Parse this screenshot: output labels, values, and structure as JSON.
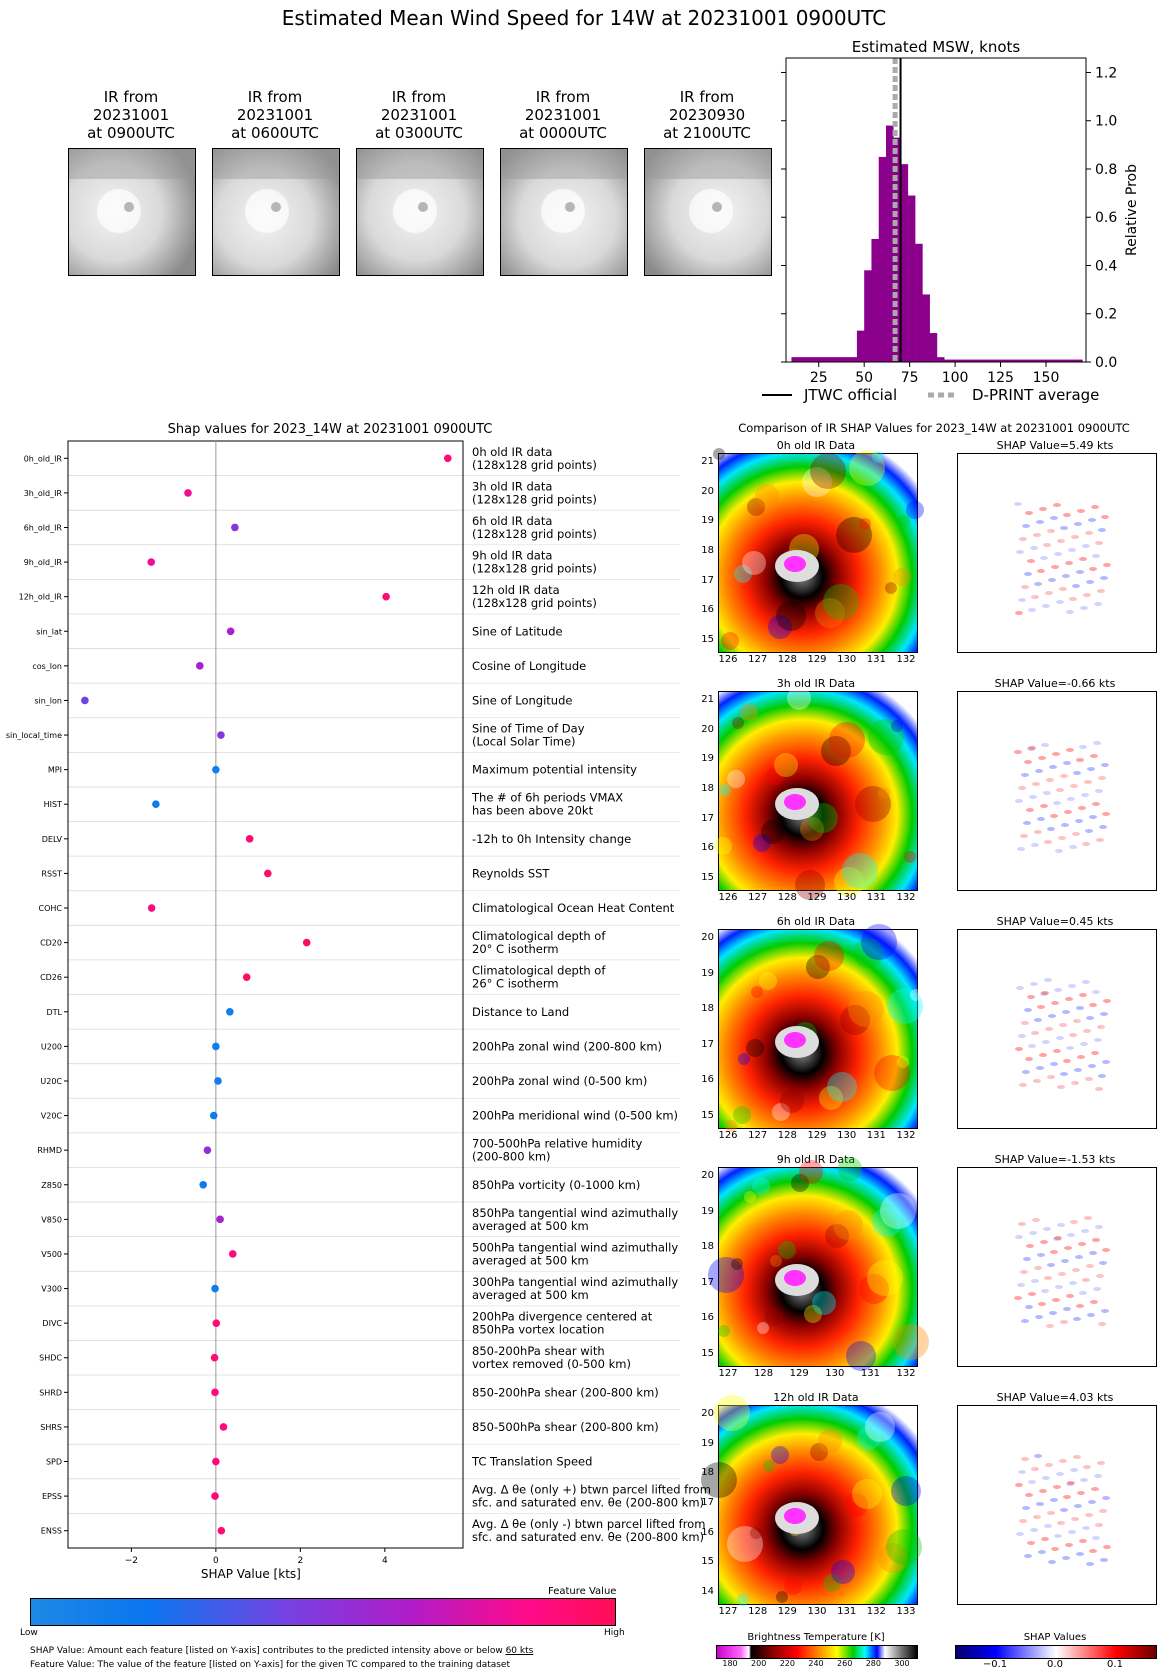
{
  "title": "Estimated Mean Wind Speed for 14W at 20231001 0900UTC",
  "ir_thumbs": [
    {
      "l1": "IR from",
      "l2": "20231001",
      "l3": "at 0900UTC"
    },
    {
      "l1": "IR from",
      "l2": "20231001",
      "l3": "at 0600UTC"
    },
    {
      "l1": "IR from",
      "l2": "20231001",
      "l3": "at 0300UTC"
    },
    {
      "l1": "IR from",
      "l2": "20231001",
      "l3": "at 0000UTC"
    },
    {
      "l1": "IR from",
      "l2": "20230930",
      "l3": "at 2100UTC"
    }
  ],
  "msw": {
    "title": "Estimated MSW, knots",
    "ylabel": "Relative Prob",
    "legend_jtwc": "JTWC official",
    "legend_dprint": "D-PRINT average",
    "xticks": [
      "25",
      "50",
      "75",
      "100",
      "125",
      "150"
    ],
    "yticks": [
      "0.0",
      "0.2",
      "0.4",
      "0.6",
      "0.8",
      "1.0",
      "1.2"
    ]
  },
  "shap": {
    "title": "Shap values for 2023_14W at 20231001 0900UTC",
    "xlabel": "SHAP Value [kts]",
    "xticks": [
      "−2",
      "0",
      "2",
      "4"
    ],
    "feature_label": "Feature Value",
    "low": "Low",
    "high": "High",
    "footer1a": "SHAP Value: Amount each feature [listed on Y-axis] contributes to the predicted intensity above or below ",
    "footer1b": "60 kts",
    "footer2": "Feature Value: The value of the feature [listed on Y-axis] for the given TC compared to the training dataset",
    "colors": {
      "low": "#1e88e5",
      "high": "#ff0d57"
    }
  },
  "chart_data": [
    {
      "type": "bar",
      "title": "Estimated MSW, knots",
      "ylabel": "Relative Prob",
      "xlim": [
        7,
        172
      ],
      "ylim": [
        0,
        1.26
      ],
      "bins": [
        [
          12,
          0.02
        ],
        [
          16,
          0.02
        ],
        [
          20,
          0.02
        ],
        [
          24,
          0.02
        ],
        [
          28,
          0.02
        ],
        [
          32,
          0.02
        ],
        [
          36,
          0.02
        ],
        [
          40,
          0.02
        ],
        [
          44,
          0.02
        ],
        [
          48,
          0.13
        ],
        [
          52,
          0.38
        ],
        [
          56,
          0.51
        ],
        [
          60,
          0.85
        ],
        [
          64,
          0.98
        ],
        [
          68,
          0.93
        ],
        [
          72,
          0.82
        ],
        [
          76,
          0.69
        ],
        [
          80,
          0.49
        ],
        [
          84,
          0.28
        ],
        [
          88,
          0.12
        ],
        [
          92,
          0.02
        ],
        [
          96,
          0.01
        ],
        [
          100,
          0.01
        ],
        [
          104,
          0.01
        ],
        [
          108,
          0.01
        ],
        [
          112,
          0.01
        ],
        [
          116,
          0.01
        ],
        [
          120,
          0.01
        ],
        [
          124,
          0.01
        ],
        [
          128,
          0.01
        ],
        [
          132,
          0.01
        ],
        [
          136,
          0.01
        ],
        [
          140,
          0.01
        ],
        [
          144,
          0.01
        ],
        [
          148,
          0.01
        ],
        [
          152,
          0.01
        ],
        [
          156,
          0.01
        ],
        [
          160,
          0.01
        ],
        [
          164,
          0.01
        ],
        [
          168,
          0.01
        ]
      ],
      "jtwc_official": 70,
      "dprint_average": 67
    },
    {
      "type": "scatter",
      "title": "Shap values for 2023_14W at 20231001 0900UTC",
      "xlabel": "SHAP Value [kts]",
      "xlim": [
        -3.5,
        5.85
      ],
      "features": [
        {
          "code": "0h_old_IR",
          "desc": [
            "0h old IR data",
            "(128x128 grid points)"
          ],
          "shap": 5.49,
          "fv": 0.9
        },
        {
          "code": "3h_old_IR",
          "desc": [
            "3h old IR data",
            "(128x128 grid points)"
          ],
          "shap": -0.66,
          "fv": 0.82
        },
        {
          "code": "6h_old_IR",
          "desc": [
            "6h old IR data",
            "(128x128 grid points)"
          ],
          "shap": 0.45,
          "fv": 0.5
        },
        {
          "code": "9h_old_IR",
          "desc": [
            "9h old IR data",
            "(128x128 grid points)"
          ],
          "shap": -1.53,
          "fv": 0.82
        },
        {
          "code": "12h_old_IR",
          "desc": [
            "12h old IR data",
            "(128x128 grid points)"
          ],
          "shap": 4.03,
          "fv": 0.92
        },
        {
          "code": "sin_lat",
          "desc": [
            "Sine of Latitude"
          ],
          "shap": 0.35,
          "fv": 0.62
        },
        {
          "code": "cos_lon",
          "desc": [
            "Cosine of Longitude"
          ],
          "shap": -0.38,
          "fv": 0.62
        },
        {
          "code": "sin_lon",
          "desc": [
            "Sine of Longitude"
          ],
          "shap": -3.1,
          "fv": 0.42
        },
        {
          "code": "sin_local_time",
          "desc": [
            "Sine of Time of Day",
            "(Local Solar Time)"
          ],
          "shap": 0.12,
          "fv": 0.48
        },
        {
          "code": "MPI",
          "desc": [
            "Maximum potential intensity"
          ],
          "shap": 0.0,
          "fv": 0.1
        },
        {
          "code": "HIST",
          "desc": [
            "The # of 6h periods VMAX",
            "has been above 20kt"
          ],
          "shap": -1.42,
          "fv": 0.15
        },
        {
          "code": "DELV",
          "desc": [
            "-12h to 0h Intensity change"
          ],
          "shap": 0.8,
          "fv": 0.92
        },
        {
          "code": "RSST",
          "desc": [
            "Reynolds SST"
          ],
          "shap": 1.23,
          "fv": 0.95
        },
        {
          "code": "COHC",
          "desc": [
            "Climatological Ocean Heat Content"
          ],
          "shap": -1.52,
          "fv": 0.88
        },
        {
          "code": "CD20",
          "desc": [
            "Climatological depth of",
            "20° C isotherm"
          ],
          "shap": 2.15,
          "fv": 0.95
        },
        {
          "code": "CD26",
          "desc": [
            "Climatological depth of",
            "26° C isotherm"
          ],
          "shap": 0.73,
          "fv": 0.95
        },
        {
          "code": "DTL",
          "desc": [
            "Distance to Land"
          ],
          "shap": 0.33,
          "fv": 0.12
        },
        {
          "code": "U200",
          "desc": [
            "200hPa zonal wind (200-800 km)"
          ],
          "shap": 0.0,
          "fv": 0.12
        },
        {
          "code": "U20C",
          "desc": [
            "200hPa zonal wind (0-500 km)"
          ],
          "shap": 0.05,
          "fv": 0.12
        },
        {
          "code": "V20C",
          "desc": [
            "200hPa meridional wind (0-500 km)"
          ],
          "shap": -0.05,
          "fv": 0.15
        },
        {
          "code": "RHMD",
          "desc": [
            "700-500hPa relative humidity",
            "(200-800 km)"
          ],
          "shap": -0.2,
          "fv": 0.55
        },
        {
          "code": "Z850",
          "desc": [
            "850hPa vorticity (0-1000 km)"
          ],
          "shap": -0.3,
          "fv": 0.15
        },
        {
          "code": "V850",
          "desc": [
            "850hPa tangential wind azimuthally",
            "averaged at 500 km"
          ],
          "shap": 0.1,
          "fv": 0.6
        },
        {
          "code": "V500",
          "desc": [
            "500hPa tangential wind azimuthally",
            "averaged at 500 km"
          ],
          "shap": 0.4,
          "fv": 0.88
        },
        {
          "code": "V300",
          "desc": [
            "300hPa tangential wind azimuthally",
            "averaged at 500 km"
          ],
          "shap": -0.02,
          "fv": 0.15
        },
        {
          "code": "DIVC",
          "desc": [
            "200hPa divergence centered at",
            "850hPa vortex location"
          ],
          "shap": 0.01,
          "fv": 0.9
        },
        {
          "code": "SHDC",
          "desc": [
            "850-200hPa shear with",
            "vortex removed (0-500 km)"
          ],
          "shap": -0.03,
          "fv": 0.9
        },
        {
          "code": "SHRD",
          "desc": [
            "850-200hPa shear (200-800 km)"
          ],
          "shap": -0.02,
          "fv": 0.9
        },
        {
          "code": "SHRS",
          "desc": [
            "850-500hPa shear (200-800 km)"
          ],
          "shap": 0.18,
          "fv": 0.9
        },
        {
          "code": "SPD",
          "desc": [
            "TC Translation Speed"
          ],
          "shap": 0.0,
          "fv": 0.9
        },
        {
          "code": "EPSS",
          "desc": [
            "Avg. Δ θe (only +) btwn parcel lifted from",
            "sfc. and saturated env. θe (200-800 km)"
          ],
          "shap": -0.02,
          "fv": 0.9
        },
        {
          "code": "ENSS",
          "desc": [
            "Avg. Δ θe (only -) btwn parcel lifted from",
            "sfc. and saturated env. θe (200-800 km)"
          ],
          "shap": 0.13,
          "fv": 0.92
        }
      ]
    }
  ],
  "comparison": {
    "title": "Comparison of IR SHAP Values for 2023_14W at 20231001 0900UTC",
    "panels": [
      {
        "ir": "0h old IR Data",
        "shap": "SHAP Value=5.49 kts",
        "yt": [
          "15",
          "16",
          "17",
          "18",
          "19",
          "20",
          "21"
        ],
        "xt": [
          "126",
          "127",
          "128",
          "129",
          "130",
          "131",
          "132"
        ]
      },
      {
        "ir": "3h old IR Data",
        "shap": "SHAP Value=-0.66 kts",
        "yt": [
          "15",
          "16",
          "17",
          "18",
          "19",
          "20",
          "21"
        ],
        "xt": [
          "126",
          "127",
          "128",
          "129",
          "130",
          "131",
          "132"
        ]
      },
      {
        "ir": "6h old IR Data",
        "shap": "SHAP Value=0.45 kts",
        "yt": [
          "15",
          "16",
          "17",
          "18",
          "19",
          "20"
        ],
        "xt": [
          "126",
          "127",
          "128",
          "129",
          "130",
          "131",
          "132"
        ]
      },
      {
        "ir": "9h old IR Data",
        "shap": "SHAP Value=-1.53 kts",
        "yt": [
          "15",
          "16",
          "17",
          "18",
          "19",
          "20"
        ],
        "xt": [
          "127",
          "128",
          "129",
          "130",
          "131",
          "132"
        ]
      },
      {
        "ir": "12h old IR Data",
        "shap": "SHAP Value=4.03 kts",
        "yt": [
          "14",
          "15",
          "16",
          "17",
          "18",
          "19",
          "20"
        ],
        "xt": [
          "127",
          "128",
          "129",
          "130",
          "131",
          "132",
          "133"
        ]
      }
    ],
    "bt_label": "Brightness Temperature [K]",
    "bt_ticks": [
      "180",
      "200",
      "220",
      "240",
      "260",
      "280",
      "300"
    ],
    "sv_label": "SHAP Values",
    "sv_ticks": [
      "−0.1",
      "0.0",
      "0.1"
    ]
  }
}
